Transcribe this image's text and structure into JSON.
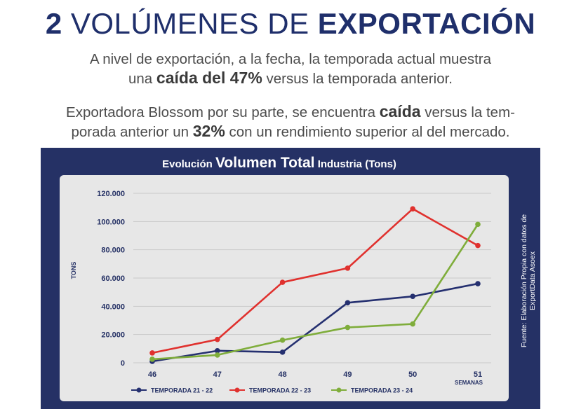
{
  "header": {
    "number": "2",
    "title_light": "VOLÚMENES DE",
    "title_bold": "EXPORTACIÓN"
  },
  "paragraph1": {
    "line1": "A nivel de exportación, a la fecha, la temporada actual muestra",
    "pre": "una",
    "bold": "caída del 47%",
    "post": "versus la temporada anterior."
  },
  "paragraph2": {
    "pre1": "Exportadora Blossom por su parte, se encuentra",
    "bold1": "caída",
    "post1": "versus la tem-",
    "pre2": "porada anterior un",
    "bold2": "32%",
    "post2": "con un rendimiento superior al del mercado."
  },
  "source_note": {
    "line1": "Fuente: Elaboración Propia con datos de",
    "line2": "ExportData Asoex"
  },
  "chart_data": {
    "type": "line",
    "title_pre": "Evolución",
    "title_big": "Volumen Total",
    "title_post": "Industria (Tons)",
    "xlabel": "SEMANAS",
    "ylabel": "TONS",
    "x": [
      "46",
      "47",
      "48",
      "49",
      "50",
      "51"
    ],
    "ylim": [
      0,
      120000
    ],
    "y_ticks": [
      {
        "value": 0,
        "label": "0"
      },
      {
        "value": 20000,
        "label": "20.000"
      },
      {
        "value": 40000,
        "label": "40.000"
      },
      {
        "value": 60000,
        "label": "60.000"
      },
      {
        "value": 80000,
        "label": "80.000"
      },
      {
        "value": 100000,
        "label": "100.000"
      },
      {
        "value": 120000,
        "label": "120.000"
      }
    ],
    "grid": true,
    "legend_position": "bottom",
    "series": [
      {
        "name": "TEMPORADA 21 - 22",
        "color": "#253070",
        "values": [
          1000,
          8500,
          7500,
          42500,
          47000,
          56000
        ]
      },
      {
        "name": "TEMPORADA 22 - 23",
        "color": "#e0312e",
        "values": [
          7000,
          16500,
          57000,
          67000,
          109000,
          83000
        ]
      },
      {
        "name": "TEMPORADA 23 - 24",
        "color": "#7fad3b",
        "values": [
          2500,
          5500,
          16000,
          25000,
          27500,
          98000
        ]
      }
    ]
  }
}
